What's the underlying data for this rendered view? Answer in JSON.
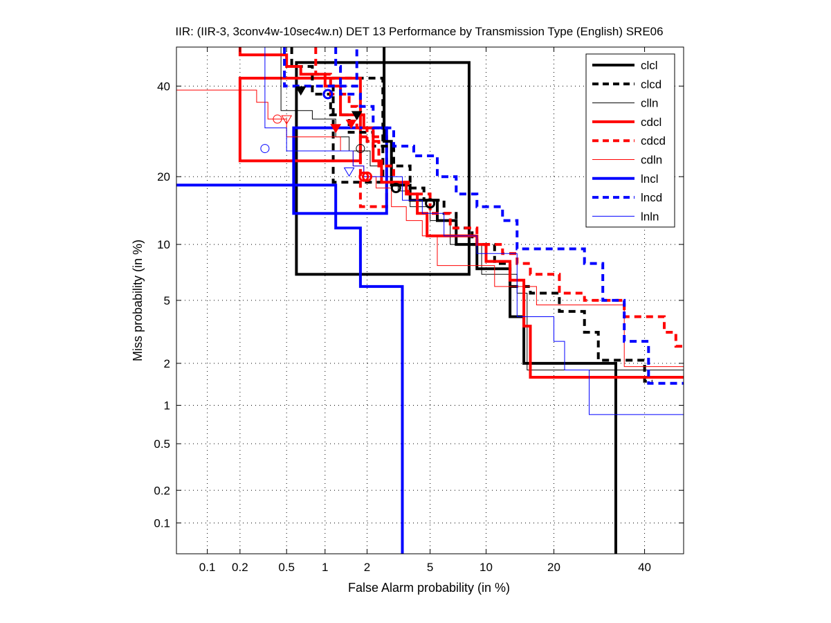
{
  "chart_data": {
    "type": "line",
    "title": "IIR: (IIR-3, 3conv4w-10sec4w.n) DET 13 Performance by Transmission Type (English) SRE06",
    "xlabel": "False Alarm probability (in %)",
    "ylabel": "Miss probability (in %)",
    "xscale": "probit",
    "yscale": "probit",
    "xlim": [
      0.05,
      50
    ],
    "ylim": [
      0.05,
      50
    ],
    "grid": true,
    "legend_position": "top-right",
    "xticks": [
      0.1,
      0.2,
      0.5,
      1,
      2,
      5,
      10,
      20,
      40
    ],
    "xtick_labels": [
      "0.1",
      "0.2",
      "0.5",
      "1",
      "2",
      "5",
      "10",
      "20",
      "40"
    ],
    "yticks": [
      0.1,
      0.2,
      0.5,
      1,
      2,
      5,
      10,
      20,
      40
    ],
    "ytick_labels": [
      "0.1",
      "0.2",
      "0.5",
      "1",
      "2",
      "5",
      "10",
      "20",
      "40"
    ],
    "series": [
      {
        "name": "clcl",
        "color": "#000000",
        "style": "solid",
        "width": "thick",
        "points": [
          [
            2.6,
            50
          ],
          [
            2.6,
            27
          ],
          [
            2.9,
            27
          ],
          [
            2.9,
            18.5
          ],
          [
            3.8,
            18.5
          ],
          [
            3.8,
            16
          ],
          [
            5.5,
            16
          ],
          [
            5.5,
            13
          ],
          [
            7,
            13
          ],
          [
            7,
            10
          ],
          [
            9,
            10
          ],
          [
            9,
            7.5
          ],
          [
            13,
            7.5
          ],
          [
            13,
            4
          ],
          [
            15,
            4
          ],
          [
            15,
            2
          ],
          [
            33,
            2
          ],
          [
            33,
            0.05
          ]
        ],
        "box": [
          0.6,
          8.2,
          7,
          46
        ],
        "dcf_point": [
          3.1,
          18
        ],
        "min_point": [
          1.7,
          33
        ]
      },
      {
        "name": "clcd",
        "color": "#000000",
        "style": "dashed",
        "width": "thick",
        "points": [
          [
            0.55,
            50
          ],
          [
            0.55,
            45
          ],
          [
            0.8,
            45
          ],
          [
            0.8,
            38
          ],
          [
            1.1,
            38
          ],
          [
            1.1,
            33
          ],
          [
            1.5,
            33
          ],
          [
            1.5,
            29
          ],
          [
            2.2,
            29
          ],
          [
            2.2,
            26
          ],
          [
            3,
            26
          ],
          [
            3,
            22
          ],
          [
            3.8,
            22
          ],
          [
            3.8,
            18
          ],
          [
            4.6,
            18
          ],
          [
            4.6,
            16
          ],
          [
            6,
            16
          ],
          [
            6,
            14
          ],
          [
            7,
            14
          ],
          [
            7,
            12
          ],
          [
            8.5,
            12
          ],
          [
            8.5,
            10
          ],
          [
            11,
            10
          ],
          [
            11,
            8
          ],
          [
            13,
            8
          ],
          [
            13,
            6
          ],
          [
            16,
            6
          ],
          [
            16,
            5.5
          ],
          [
            21,
            5.5
          ],
          [
            21,
            4.3
          ],
          [
            26,
            4.3
          ],
          [
            26,
            3.2
          ],
          [
            29,
            3.2
          ],
          [
            29,
            2.1
          ],
          [
            40,
            2.1
          ],
          [
            40,
            1.5
          ],
          [
            42,
            1.5
          ]
        ],
        "box": [
          1.15,
          2.55,
          19,
          42
        ],
        "dcf_point": [
          5,
          15.5
        ],
        "min_point": [
          0.65,
          39
        ]
      },
      {
        "name": "clln",
        "color": "#000000",
        "style": "solid",
        "width": "thin",
        "points": [
          [
            0.45,
            50
          ],
          [
            0.45,
            34
          ],
          [
            0.8,
            34
          ],
          [
            0.8,
            32
          ],
          [
            1.2,
            32
          ],
          [
            1.2,
            28
          ],
          [
            1.5,
            28
          ],
          [
            1.5,
            25
          ],
          [
            2.1,
            25
          ],
          [
            2.1,
            22
          ],
          [
            2.5,
            22
          ],
          [
            2.5,
            19
          ],
          [
            3.2,
            19
          ],
          [
            3.2,
            17.5
          ],
          [
            3.8,
            17.5
          ],
          [
            3.8,
            15
          ],
          [
            5,
            15
          ],
          [
            5,
            13
          ],
          [
            6.5,
            13
          ],
          [
            6.5,
            10
          ],
          [
            9.5,
            10
          ],
          [
            9.5,
            7
          ],
          [
            14,
            7
          ],
          [
            14,
            5.5
          ],
          [
            15.5,
            5.5
          ],
          [
            15.5,
            1.8
          ],
          [
            50,
            1.8
          ]
        ],
        "box": null,
        "dcf_point": [
          1.8,
          25.5
        ],
        "min_point": [
          null,
          null
        ]
      },
      {
        "name": "cdcl",
        "color": "#ff0000",
        "style": "solid",
        "width": "thick",
        "points": [
          [
            0.2,
            50
          ],
          [
            0.2,
            48
          ],
          [
            0.5,
            48
          ],
          [
            0.5,
            45
          ],
          [
            0.65,
            45
          ],
          [
            0.65,
            43
          ],
          [
            1,
            43
          ],
          [
            1,
            40
          ],
          [
            1.3,
            40
          ],
          [
            1.3,
            33
          ],
          [
            1.9,
            33
          ],
          [
            1.9,
            30
          ],
          [
            2.2,
            30
          ],
          [
            2.2,
            23
          ],
          [
            2.5,
            23
          ],
          [
            2.5,
            19
          ],
          [
            3.6,
            19
          ],
          [
            3.6,
            17
          ],
          [
            4.2,
            17
          ],
          [
            4.2,
            14
          ],
          [
            4.8,
            14
          ],
          [
            4.8,
            11
          ],
          [
            9,
            11
          ],
          [
            9,
            10
          ],
          [
            10,
            10
          ],
          [
            10,
            8.2
          ],
          [
            13,
            8.2
          ],
          [
            13,
            6.5
          ],
          [
            15,
            6.5
          ],
          [
            15,
            3.5
          ],
          [
            16,
            3.5
          ],
          [
            16,
            1.6
          ],
          [
            50,
            1.6
          ]
        ],
        "box": [
          0.2,
          1.8,
          23,
          42
        ],
        "dcf_point": [
          2,
          20
        ],
        "min_point": [
          1.2,
          30
        ]
      },
      {
        "name": "cdcd",
        "color": "#ff0000",
        "style": "dashed",
        "width": "thick",
        "points": [
          [
            0.85,
            50
          ],
          [
            0.85,
            43
          ],
          [
            1.1,
            43
          ],
          [
            1.1,
            38
          ],
          [
            1.5,
            38
          ],
          [
            1.5,
            35
          ],
          [
            1.7,
            35
          ],
          [
            1.7,
            30
          ],
          [
            2,
            30
          ],
          [
            2,
            27
          ],
          [
            2.4,
            27
          ],
          [
            2.4,
            22
          ],
          [
            3,
            22
          ],
          [
            3,
            19
          ],
          [
            3.7,
            19
          ],
          [
            3.7,
            17
          ],
          [
            5,
            17
          ],
          [
            5,
            14
          ],
          [
            6.5,
            14
          ],
          [
            6.5,
            12
          ],
          [
            9,
            12
          ],
          [
            9,
            10
          ],
          [
            12,
            10
          ],
          [
            12,
            9
          ],
          [
            14,
            9
          ],
          [
            14,
            8
          ],
          [
            16,
            8
          ],
          [
            16,
            7
          ],
          [
            21,
            7
          ],
          [
            21,
            5.5
          ],
          [
            26,
            5.5
          ],
          [
            26,
            5
          ],
          [
            35,
            5
          ],
          [
            35,
            4
          ],
          [
            45,
            4
          ],
          [
            45,
            3.2
          ],
          [
            48,
            3.2
          ],
          [
            48,
            2.6
          ],
          [
            50,
            2.6
          ]
        ],
        "box": [
          1.8,
          2.7,
          15,
          28
        ],
        "dcf_point": [
          1.9,
          20
        ],
        "min_point": [
          1.55,
          31
        ]
      },
      {
        "name": "cdln",
        "color": "#ff0000",
        "style": "solid",
        "width": "thin",
        "points": [
          [
            0.05,
            39
          ],
          [
            0.28,
            39
          ],
          [
            0.28,
            36
          ],
          [
            0.35,
            36
          ],
          [
            0.35,
            32
          ],
          [
            0.5,
            32
          ],
          [
            0.5,
            28
          ],
          [
            1.3,
            28
          ],
          [
            1.3,
            25
          ],
          [
            1.6,
            25
          ],
          [
            1.6,
            22
          ],
          [
            1.9,
            22
          ],
          [
            1.9,
            20
          ],
          [
            2.3,
            20
          ],
          [
            2.3,
            18
          ],
          [
            2.9,
            18
          ],
          [
            2.9,
            15
          ],
          [
            3.6,
            15
          ],
          [
            3.6,
            13
          ],
          [
            4.5,
            13
          ],
          [
            4.5,
            11
          ],
          [
            5.5,
            11
          ],
          [
            5.5,
            7.8
          ],
          [
            11,
            7.8
          ],
          [
            11,
            6
          ],
          [
            17,
            6
          ],
          [
            17,
            4.7
          ],
          [
            35,
            4.7
          ],
          [
            35,
            1.9
          ],
          [
            50,
            1.9
          ]
        ],
        "box": null,
        "dcf_point": [
          0.42,
          32
        ],
        "min_point": [
          0.5,
          32
        ]
      },
      {
        "name": "lncl",
        "color": "#0000ff",
        "style": "solid",
        "width": "thick",
        "points": [
          [
            0.05,
            18.5
          ],
          [
            1.2,
            18.5
          ],
          [
            1.2,
            12
          ],
          [
            1.8,
            12
          ],
          [
            1.8,
            6
          ],
          [
            3.4,
            6
          ],
          [
            3.4,
            0.05
          ]
        ],
        "box": [
          0.57,
          2.7,
          14,
          30
        ],
        "dcf_point": [
          1.05,
          38
        ],
        "min_point": [
          null,
          null
        ]
      },
      {
        "name": "lncd",
        "color": "#0000ff",
        "style": "dashed",
        "width": "thick",
        "points": [
          [
            0.48,
            50
          ],
          [
            0.48,
            40
          ],
          [
            1.7,
            40
          ],
          [
            1.7,
            50
          ]
        ],
        "extra": [
          [
            1.2,
            50
          ],
          [
            1.2,
            45
          ],
          [
            1.3,
            45
          ],
          [
            1.3,
            38
          ],
          [
            1.8,
            38
          ],
          [
            1.8,
            35
          ],
          [
            2.2,
            35
          ],
          [
            2.2,
            30
          ],
          [
            3,
            30
          ],
          [
            3,
            26
          ],
          [
            4,
            26
          ],
          [
            4,
            24
          ],
          [
            5.5,
            24
          ],
          [
            5.5,
            20
          ],
          [
            7,
            20
          ],
          [
            7,
            17
          ],
          [
            9,
            17
          ],
          [
            9,
            15
          ],
          [
            12,
            15
          ],
          [
            12,
            13
          ],
          [
            14,
            13
          ],
          [
            14,
            9.5
          ],
          [
            26,
            9.5
          ],
          [
            26,
            8
          ],
          [
            30,
            8
          ],
          [
            30,
            5
          ],
          [
            35,
            5
          ],
          [
            35,
            2.8
          ],
          [
            41,
            2.8
          ],
          [
            41,
            1.45
          ],
          [
            50,
            1.45
          ]
        ],
        "box": null,
        "dcf_point": [
          null,
          null
        ],
        "min_point": [
          null,
          null
        ]
      },
      {
        "name": "lnln",
        "color": "#0000ff",
        "style": "solid",
        "width": "thin",
        "points": [
          [
            0.33,
            50
          ],
          [
            0.33,
            30
          ],
          [
            0.5,
            30
          ],
          [
            0.5,
            25
          ],
          [
            1.6,
            25
          ],
          [
            1.6,
            22
          ],
          [
            1.9,
            22
          ],
          [
            1.9,
            20
          ],
          [
            3.4,
            20
          ],
          [
            3.4,
            16
          ],
          [
            4.5,
            16
          ],
          [
            4.5,
            14
          ],
          [
            6,
            14
          ],
          [
            6,
            11
          ],
          [
            9,
            11
          ],
          [
            9,
            9
          ],
          [
            14,
            9
          ],
          [
            14,
            4
          ],
          [
            20,
            4
          ],
          [
            20,
            2.8
          ],
          [
            22,
            2.8
          ],
          [
            22,
            1.8
          ],
          [
            27,
            1.8
          ],
          [
            27,
            0.85
          ],
          [
            50,
            0.85
          ]
        ],
        "box": null,
        "dcf_point": [
          0.33,
          25.5
        ],
        "min_point": [
          1.5,
          21
        ]
      }
    ]
  }
}
